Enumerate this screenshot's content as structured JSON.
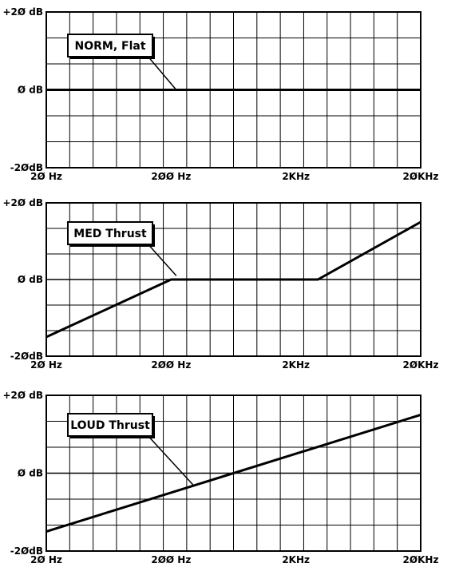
{
  "chart_data": [
    {
      "type": "line",
      "x_scale": "log",
      "xlim": [
        20,
        20000
      ],
      "ylim": [
        -20,
        20
      ],
      "grid": true,
      "x_tick_labels": [
        "2Ø Hz",
        "2ØØ Hz",
        "2KHz",
        "2ØKHz"
      ],
      "y_tick_labels": [
        "+2Ø dB",
        "Ø dB",
        "-2ØdB"
      ],
      "series": [
        {
          "name": "NORM, Flat",
          "x": [
            20,
            20000
          ],
          "y": [
            0,
            0
          ]
        }
      ],
      "annotation": {
        "text": "NORM, Flat",
        "points_to": {
          "x": 220,
          "y": 0
        }
      }
    },
    {
      "type": "line",
      "x_scale": "log",
      "xlim": [
        20,
        20000
      ],
      "ylim": [
        -20,
        20
      ],
      "grid": true,
      "x_tick_labels": [
        "2Ø Hz",
        "2ØØ Hz",
        "2KHz",
        "2ØKHz"
      ],
      "y_tick_labels": [
        "+2Ø dB",
        "Ø dB",
        "-2ØdB"
      ],
      "series": [
        {
          "name": "MED Thrust",
          "x": [
            20,
            200,
            3000,
            20000
          ],
          "y": [
            -15,
            0,
            0,
            15
          ]
        }
      ],
      "annotation": {
        "text": "MED Thrust",
        "points_to": {
          "x": 220,
          "y": 1
        }
      }
    },
    {
      "type": "line",
      "x_scale": "log",
      "xlim": [
        20,
        20000
      ],
      "ylim": [
        -20,
        20
      ],
      "grid": true,
      "x_tick_labels": [
        "2Ø Hz",
        "2ØØ Hz",
        "2KHz",
        "2ØKHz"
      ],
      "y_tick_labels": [
        "+2Ø dB",
        "Ø dB",
        "-2ØdB"
      ],
      "series": [
        {
          "name": "LOUD Thrust",
          "x": [
            20,
            20000
          ],
          "y": [
            -15,
            15
          ]
        }
      ],
      "annotation": {
        "text": "LOUD Thrust",
        "points_to": {
          "x": 300,
          "y": -3
        }
      }
    }
  ]
}
